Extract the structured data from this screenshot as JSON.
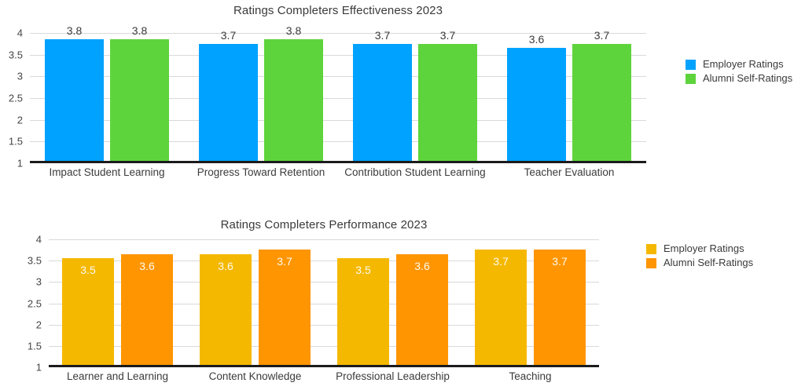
{
  "chart_data": [
    {
      "id": "effectiveness",
      "type": "bar",
      "title": "Ratings Completers Effectiveness 2023",
      "categories": [
        "Impact Student Learning",
        "Progress Toward Retention",
        "Contribution Student Learning",
        "Teacher Evaluation"
      ],
      "series": [
        {
          "name": "Employer Ratings",
          "color": "#00A2FF",
          "values": [
            3.8,
            3.7,
            3.7,
            3.6
          ]
        },
        {
          "name": "Alumni Self-Ratings",
          "color": "#5ED43C",
          "values": [
            3.8,
            3.8,
            3.7,
            3.7
          ]
        }
      ],
      "xlabel": "",
      "ylabel": "",
      "ylim": [
        1,
        4
      ],
      "yticks": [
        "4",
        "3.5",
        "3",
        "2.5",
        "2",
        "1.5",
        "1"
      ],
      "grid": true,
      "legend_position": "right",
      "value_label_position": "above",
      "value_label_color": "#3a3a3a"
    },
    {
      "id": "performance",
      "type": "bar",
      "title": "Ratings Completers Performance 2023",
      "categories": [
        "Learner and Learning",
        "Content Knowledge",
        "Professional Leadership",
        "Teaching"
      ],
      "series": [
        {
          "name": "Employer Ratings",
          "color": "#F5B800",
          "values": [
            3.5,
            3.6,
            3.5,
            3.7
          ]
        },
        {
          "name": "Alumni Self-Ratings",
          "color": "#FF9500",
          "values": [
            3.6,
            3.7,
            3.6,
            3.7
          ]
        }
      ],
      "xlabel": "",
      "ylabel": "",
      "ylim": [
        1,
        4
      ],
      "yticks": [
        "4",
        "3.5",
        "3",
        "2.5",
        "2",
        "1.5",
        "1"
      ],
      "grid": true,
      "legend_position": "right",
      "value_label_position": "inside",
      "value_label_color": "#FBFAF2"
    }
  ],
  "styles": {
    "background": "#FFFFFF",
    "gridline_color": "#D9D9D9",
    "axis_color": "#1B1B1B",
    "text_color": "#3A3A3A"
  }
}
